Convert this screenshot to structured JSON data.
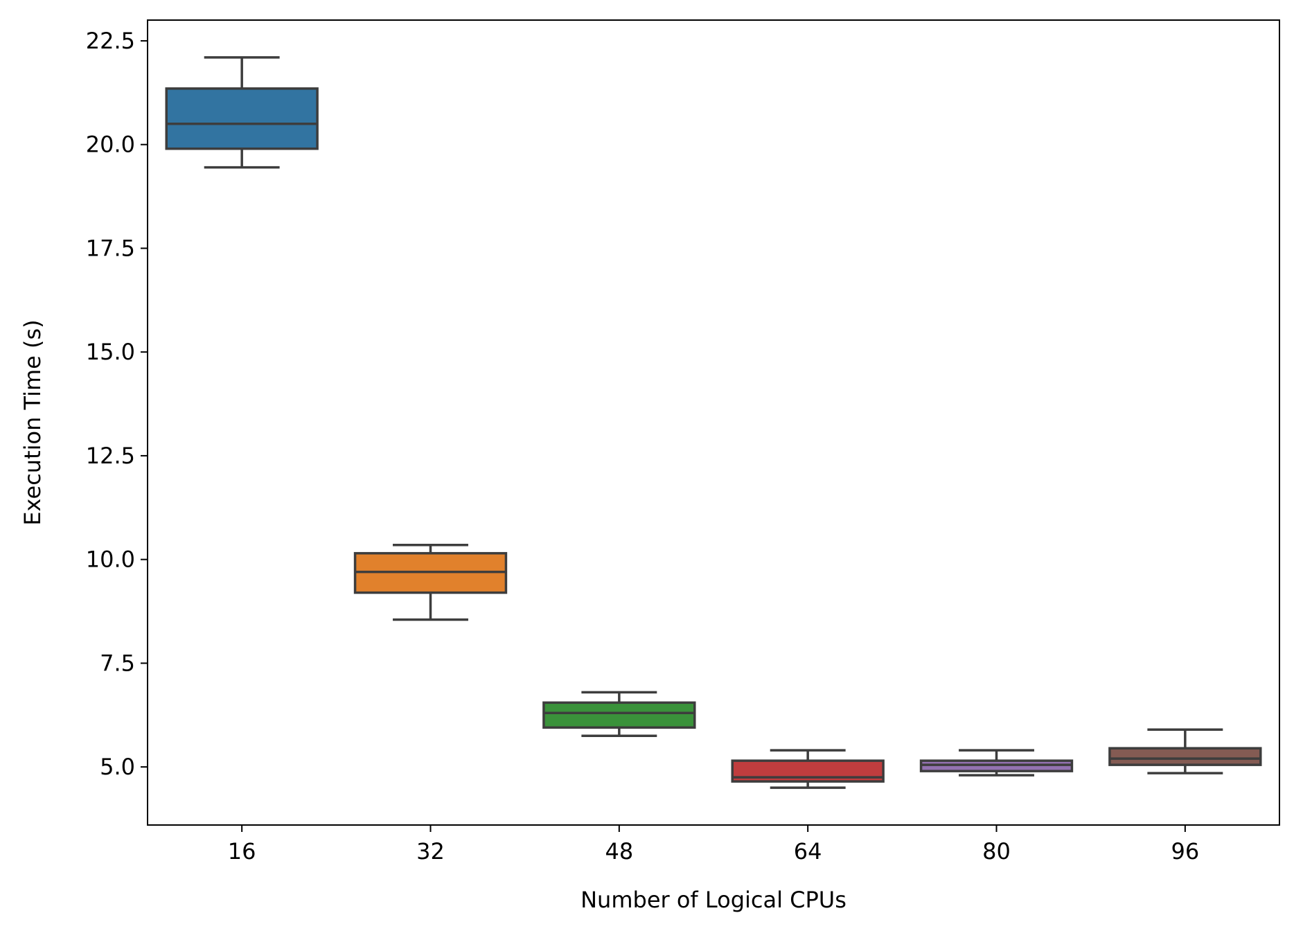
{
  "chart_data": {
    "type": "box",
    "title": "",
    "xlabel": "Number of Logical CPUs",
    "ylabel": "Execution Time (s)",
    "categories": [
      "16",
      "32",
      "48",
      "64",
      "80",
      "96"
    ],
    "ylim": [
      3.6,
      23.0
    ],
    "yticks": [
      5.0,
      7.5,
      10.0,
      12.5,
      15.0,
      17.5,
      20.0,
      22.5
    ],
    "ytick_labels": [
      "5.0",
      "7.5",
      "10.0",
      "12.5",
      "15.0",
      "17.5",
      "20.0",
      "22.5"
    ],
    "grid": false,
    "legend": "none",
    "boxes": [
      {
        "category": "16",
        "whisker_low": 19.45,
        "q1": 19.9,
        "median": 20.5,
        "q3": 21.35,
        "whisker_high": 22.1,
        "color": "#3274a1"
      },
      {
        "category": "32",
        "whisker_low": 8.55,
        "q1": 9.2,
        "median": 9.7,
        "q3": 10.15,
        "whisker_high": 10.35,
        "color": "#e1812c"
      },
      {
        "category": "48",
        "whisker_low": 5.75,
        "q1": 5.95,
        "median": 6.3,
        "q3": 6.55,
        "whisker_high": 6.8,
        "color": "#3a923a"
      },
      {
        "category": "64",
        "whisker_low": 4.5,
        "q1": 4.65,
        "median": 4.75,
        "q3": 5.15,
        "whisker_high": 5.4,
        "color": "#c03d3e"
      },
      {
        "category": "80",
        "whisker_low": 4.8,
        "q1": 4.9,
        "median": 5.05,
        "q3": 5.15,
        "whisker_high": 5.4,
        "color": "#9372b2"
      },
      {
        "category": "96",
        "whisker_low": 4.85,
        "q1": 5.05,
        "median": 5.2,
        "q3": 5.45,
        "whisker_high": 5.9,
        "color": "#845b53"
      }
    ],
    "line_color": "#3d3d3d"
  }
}
